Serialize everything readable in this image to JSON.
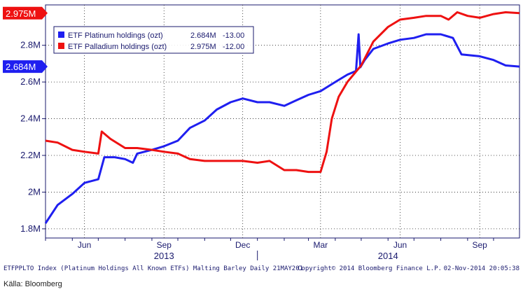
{
  "chart_data": {
    "type": "line",
    "ylim": [
      1.75,
      3.02
    ],
    "y_ticks": [
      "1.8M",
      "2M",
      "2.2M",
      "2.4M",
      "2.6M",
      "2.8M"
    ],
    "y_tick_values": [
      1.8,
      2.0,
      2.2,
      2.4,
      2.6,
      2.8
    ],
    "x_range": [
      "2013-05-01",
      "2014-10-31"
    ],
    "x_month_labels": [
      {
        "label": "Jun",
        "date": "2013-06-15"
      },
      {
        "label": "Sep",
        "date": "2013-09-15"
      },
      {
        "label": "Dec",
        "date": "2013-12-15"
      },
      {
        "label": "Mar",
        "date": "2014-03-15"
      },
      {
        "label": "Jun",
        "date": "2014-06-15"
      },
      {
        "label": "Sep",
        "date": "2014-09-15"
      }
    ],
    "x_year_labels": [
      {
        "label": "2013",
        "date": "2013-09-15"
      },
      {
        "label": "2014",
        "date": "2014-06-01"
      }
    ],
    "series": [
      {
        "name": "ETF Platinum holdings (ozt)",
        "color": "#1f1ff0",
        "last_value": 2.684,
        "last_value_label": "2.684M",
        "change_label": "-13.00",
        "points": [
          [
            "2013-05-01",
            1.83
          ],
          [
            "2013-05-15",
            1.93
          ],
          [
            "2013-06-01",
            1.99
          ],
          [
            "2013-06-15",
            2.05
          ],
          [
            "2013-07-01",
            2.07
          ],
          [
            "2013-07-08",
            2.19
          ],
          [
            "2013-07-20",
            2.19
          ],
          [
            "2013-08-01",
            2.18
          ],
          [
            "2013-08-10",
            2.16
          ],
          [
            "2013-08-15",
            2.21
          ],
          [
            "2013-09-01",
            2.23
          ],
          [
            "2013-09-15",
            2.25
          ],
          [
            "2013-10-01",
            2.28
          ],
          [
            "2013-10-15",
            2.35
          ],
          [
            "2013-11-01",
            2.39
          ],
          [
            "2013-11-15",
            2.45
          ],
          [
            "2013-12-01",
            2.49
          ],
          [
            "2013-12-15",
            2.51
          ],
          [
            "2014-01-01",
            2.49
          ],
          [
            "2014-01-15",
            2.49
          ],
          [
            "2014-02-01",
            2.47
          ],
          [
            "2014-02-15",
            2.5
          ],
          [
            "2014-03-01",
            2.53
          ],
          [
            "2014-03-15",
            2.55
          ],
          [
            "2014-04-01",
            2.6
          ],
          [
            "2014-04-15",
            2.64
          ],
          [
            "2014-04-25",
            2.66
          ],
          [
            "2014-04-28",
            2.86
          ],
          [
            "2014-04-30",
            2.68
          ],
          [
            "2014-05-05",
            2.72
          ],
          [
            "2014-05-15",
            2.78
          ],
          [
            "2014-06-01",
            2.81
          ],
          [
            "2014-06-15",
            2.83
          ],
          [
            "2014-07-01",
            2.84
          ],
          [
            "2014-07-15",
            2.86
          ],
          [
            "2014-08-01",
            2.86
          ],
          [
            "2014-08-15",
            2.84
          ],
          [
            "2014-08-25",
            2.75
          ],
          [
            "2014-09-15",
            2.74
          ],
          [
            "2014-10-01",
            2.72
          ],
          [
            "2014-10-15",
            2.69
          ],
          [
            "2014-10-31",
            2.684
          ]
        ]
      },
      {
        "name": "ETF Palladium holdings (ozt)",
        "color": "#ee1111",
        "last_value": 2.975,
        "last_value_label": "2.975M",
        "change_label": "-12.00",
        "points": [
          [
            "2013-05-01",
            2.28
          ],
          [
            "2013-05-15",
            2.27
          ],
          [
            "2013-06-01",
            2.23
          ],
          [
            "2013-06-15",
            2.22
          ],
          [
            "2013-07-01",
            2.21
          ],
          [
            "2013-07-05",
            2.33
          ],
          [
            "2013-07-15",
            2.29
          ],
          [
            "2013-08-01",
            2.24
          ],
          [
            "2013-08-15",
            2.24
          ],
          [
            "2013-09-01",
            2.23
          ],
          [
            "2013-09-15",
            2.22
          ],
          [
            "2013-10-01",
            2.21
          ],
          [
            "2013-10-15",
            2.18
          ],
          [
            "2013-11-01",
            2.17
          ],
          [
            "2013-11-15",
            2.17
          ],
          [
            "2013-12-01",
            2.17
          ],
          [
            "2013-12-15",
            2.17
          ],
          [
            "2014-01-01",
            2.16
          ],
          [
            "2014-01-15",
            2.17
          ],
          [
            "2014-02-01",
            2.12
          ],
          [
            "2014-02-15",
            2.12
          ],
          [
            "2014-03-01",
            2.11
          ],
          [
            "2014-03-15",
            2.11
          ],
          [
            "2014-03-22",
            2.22
          ],
          [
            "2014-03-28",
            2.4
          ],
          [
            "2014-04-05",
            2.52
          ],
          [
            "2014-04-15",
            2.6
          ],
          [
            "2014-05-01",
            2.69
          ],
          [
            "2014-05-15",
            2.82
          ],
          [
            "2014-06-01",
            2.9
          ],
          [
            "2014-06-15",
            2.94
          ],
          [
            "2014-07-01",
            2.95
          ],
          [
            "2014-07-15",
            2.96
          ],
          [
            "2014-08-01",
            2.96
          ],
          [
            "2014-08-10",
            2.94
          ],
          [
            "2014-08-20",
            2.98
          ],
          [
            "2014-09-01",
            2.96
          ],
          [
            "2014-09-15",
            2.95
          ],
          [
            "2014-10-01",
            2.97
          ],
          [
            "2014-10-15",
            2.98
          ],
          [
            "2014-10-31",
            2.975
          ]
        ]
      }
    ],
    "legend_placement": "top-left",
    "grid": true
  },
  "footer": {
    "left": "ETFPPLTO Index (Platinum Holdings All Known ETFs) Malting Barley  Daily 21MAY201",
    "middle": "Copyright© 2014 Bloomberg Finance L.P.",
    "right": "02-Nov-2014 20:05:38"
  },
  "source": "Källa: Bloomberg"
}
